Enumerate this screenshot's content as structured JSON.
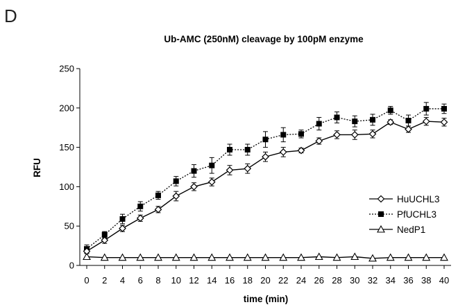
{
  "panel_label": "D",
  "chart_data": {
    "type": "line",
    "title": "Ub-AMC (250nM) cleavage by 100pM enzyme",
    "xlabel": "time (min)",
    "ylabel": "RFU",
    "xlim": [
      0,
      40
    ],
    "ylim": [
      0,
      250
    ],
    "x_ticks": [
      0,
      2,
      4,
      6,
      8,
      10,
      12,
      14,
      16,
      18,
      20,
      22,
      24,
      26,
      28,
      30,
      32,
      34,
      36,
      38,
      40
    ],
    "y_ticks": [
      0,
      50,
      100,
      150,
      200,
      250
    ],
    "grid": false,
    "legend_position": "right",
    "x": [
      0,
      2,
      4,
      6,
      8,
      10,
      12,
      14,
      16,
      18,
      20,
      22,
      24,
      26,
      28,
      30,
      32,
      34,
      36,
      38,
      40
    ],
    "series": [
      {
        "name": "HuUCHL3",
        "marker": "diamond-open",
        "line": "solid",
        "values": [
          18,
          32,
          47,
          60,
          71,
          88,
          100,
          106,
          121,
          123,
          138,
          144,
          146,
          158,
          166,
          166,
          167,
          182,
          173,
          183,
          182
        ],
        "errors": [
          3,
          4,
          4,
          4,
          4,
          6,
          5,
          5,
          6,
          6,
          6,
          6,
          3,
          4,
          5,
          6,
          5,
          3,
          4,
          5,
          5
        ]
      },
      {
        "name": "PfUCHL3",
        "marker": "square-filled",
        "line": "dotted",
        "values": [
          21,
          39,
          59,
          75,
          89,
          107,
          120,
          127,
          147,
          147,
          160,
          166,
          167,
          180,
          188,
          183,
          185,
          197,
          184,
          199,
          199
        ],
        "errors": [
          5,
          4,
          6,
          6,
          5,
          6,
          8,
          10,
          7,
          7,
          10,
          9,
          5,
          8,
          7,
          7,
          7,
          5,
          7,
          8,
          6
        ]
      },
      {
        "name": "NedP1",
        "marker": "triangle-open",
        "line": "solid",
        "values": [
          11,
          10,
          10,
          10,
          10,
          10,
          10,
          10,
          10,
          10,
          10,
          10,
          10,
          11,
          10,
          11,
          9,
          10,
          10,
          10,
          10
        ],
        "errors": [
          0,
          0,
          0,
          0,
          0,
          0,
          0,
          0,
          0,
          0,
          0,
          0,
          0,
          0,
          0,
          0,
          0,
          0,
          0,
          0,
          0
        ]
      }
    ]
  }
}
